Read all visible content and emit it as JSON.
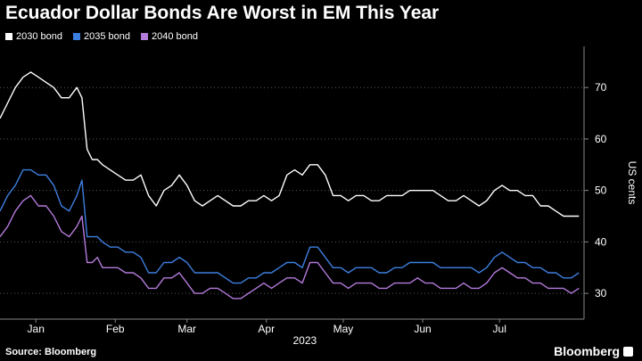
{
  "chart_data": {
    "type": "line",
    "title": "Ecuador Dollar Bonds Are Worst in EM This Year",
    "xlabel": "2023",
    "ylabel": "US cents",
    "x_tick_labels": [
      "Jan",
      "Feb",
      "Mar",
      "Apr",
      "May",
      "Jun",
      "Jul"
    ],
    "x_ticks_day": [
      14,
      45,
      73,
      104,
      134,
      165,
      195
    ],
    "x_range_day": [
      0,
      228
    ],
    "ylim": [
      25,
      78
    ],
    "y_ticks": [
      30,
      40,
      50,
      60,
      70
    ],
    "grid": "horizontal dotted",
    "legend_position": "top-left",
    "series": [
      {
        "name": "2030 bond",
        "color": "#ffffff",
        "days": [
          0,
          3,
          6,
          9,
          12,
          15,
          18,
          21,
          24,
          27,
          30,
          32,
          34,
          36,
          38,
          40,
          43,
          46,
          49,
          52,
          55,
          58,
          61,
          64,
          67,
          70,
          73,
          76,
          79,
          82,
          85,
          88,
          91,
          94,
          97,
          100,
          103,
          106,
          109,
          112,
          115,
          118,
          121,
          124,
          127,
          130,
          133,
          136,
          139,
          142,
          145,
          148,
          151,
          154,
          157,
          160,
          163,
          166,
          169,
          172,
          175,
          178,
          181,
          184,
          187,
          190,
          193,
          196,
          199,
          202,
          205,
          208,
          211,
          214,
          217,
          220,
          223,
          226
        ],
        "values": [
          64,
          67,
          70,
          72,
          73,
          72,
          71,
          70,
          68,
          68,
          70,
          68,
          58,
          56,
          56,
          55,
          54,
          53,
          52,
          52,
          53,
          49,
          47,
          50,
          51,
          53,
          51,
          48,
          47,
          48,
          49,
          48,
          47,
          47,
          48,
          48,
          49,
          48,
          49,
          53,
          54,
          53,
          55,
          55,
          53,
          49,
          49,
          48,
          49,
          49,
          48,
          48,
          49,
          49,
          49,
          50,
          50,
          50,
          50,
          49,
          48,
          48,
          49,
          48,
          47,
          48,
          50,
          51,
          50,
          50,
          49,
          49,
          47,
          47,
          46,
          45,
          45,
          45
        ]
      },
      {
        "name": "2035 bond",
        "color": "#3d7fe0",
        "days": [
          0,
          3,
          6,
          9,
          12,
          15,
          18,
          21,
          24,
          27,
          30,
          32,
          34,
          36,
          38,
          40,
          43,
          46,
          49,
          52,
          55,
          58,
          61,
          64,
          67,
          70,
          73,
          76,
          79,
          82,
          85,
          88,
          91,
          94,
          97,
          100,
          103,
          106,
          109,
          112,
          115,
          118,
          121,
          124,
          127,
          130,
          133,
          136,
          139,
          142,
          145,
          148,
          151,
          154,
          157,
          160,
          163,
          166,
          169,
          172,
          175,
          178,
          181,
          184,
          187,
          190,
          193,
          196,
          199,
          202,
          205,
          208,
          211,
          214,
          217,
          220,
          223,
          226
        ],
        "values": [
          46,
          49,
          51,
          54,
          54,
          53,
          53,
          51,
          47,
          46,
          49,
          52,
          41,
          41,
          41,
          40,
          39,
          39,
          38,
          38,
          37,
          34,
          34,
          36,
          36,
          37,
          36,
          34,
          34,
          34,
          34,
          33,
          32,
          32,
          33,
          33,
          34,
          34,
          35,
          36,
          36,
          35,
          39,
          39,
          37,
          35,
          35,
          34,
          35,
          35,
          35,
          34,
          34,
          35,
          35,
          36,
          36,
          36,
          36,
          35,
          35,
          35,
          35,
          35,
          34,
          35,
          37,
          38,
          37,
          36,
          36,
          35,
          35,
          34,
          34,
          33,
          33,
          34
        ]
      },
      {
        "name": "2040 bond",
        "color": "#b57bdc",
        "days": [
          0,
          3,
          6,
          9,
          12,
          15,
          18,
          21,
          24,
          27,
          30,
          32,
          34,
          36,
          38,
          40,
          43,
          46,
          49,
          52,
          55,
          58,
          61,
          64,
          67,
          70,
          73,
          76,
          79,
          82,
          85,
          88,
          91,
          94,
          97,
          100,
          103,
          106,
          109,
          112,
          115,
          118,
          121,
          124,
          127,
          130,
          133,
          136,
          139,
          142,
          145,
          148,
          151,
          154,
          157,
          160,
          163,
          166,
          169,
          172,
          175,
          178,
          181,
          184,
          187,
          190,
          193,
          196,
          199,
          202,
          205,
          208,
          211,
          214,
          217,
          220,
          223,
          226
        ],
        "values": [
          41,
          43,
          46,
          48,
          49,
          47,
          47,
          45,
          42,
          41,
          43,
          45,
          36,
          36,
          37,
          35,
          35,
          35,
          34,
          34,
          33,
          31,
          31,
          33,
          33,
          34,
          32,
          30,
          30,
          31,
          31,
          30,
          29,
          29,
          30,
          31,
          32,
          31,
          32,
          33,
          33,
          32,
          36,
          36,
          34,
          32,
          32,
          31,
          32,
          32,
          32,
          31,
          31,
          32,
          32,
          32,
          33,
          32,
          32,
          31,
          31,
          31,
          32,
          31,
          31,
          32,
          34,
          35,
          34,
          33,
          33,
          32,
          32,
          31,
          31,
          31,
          30,
          31
        ]
      }
    ]
  },
  "footer": {
    "source": "Source: Bloomberg",
    "brand": "Bloomberg"
  }
}
